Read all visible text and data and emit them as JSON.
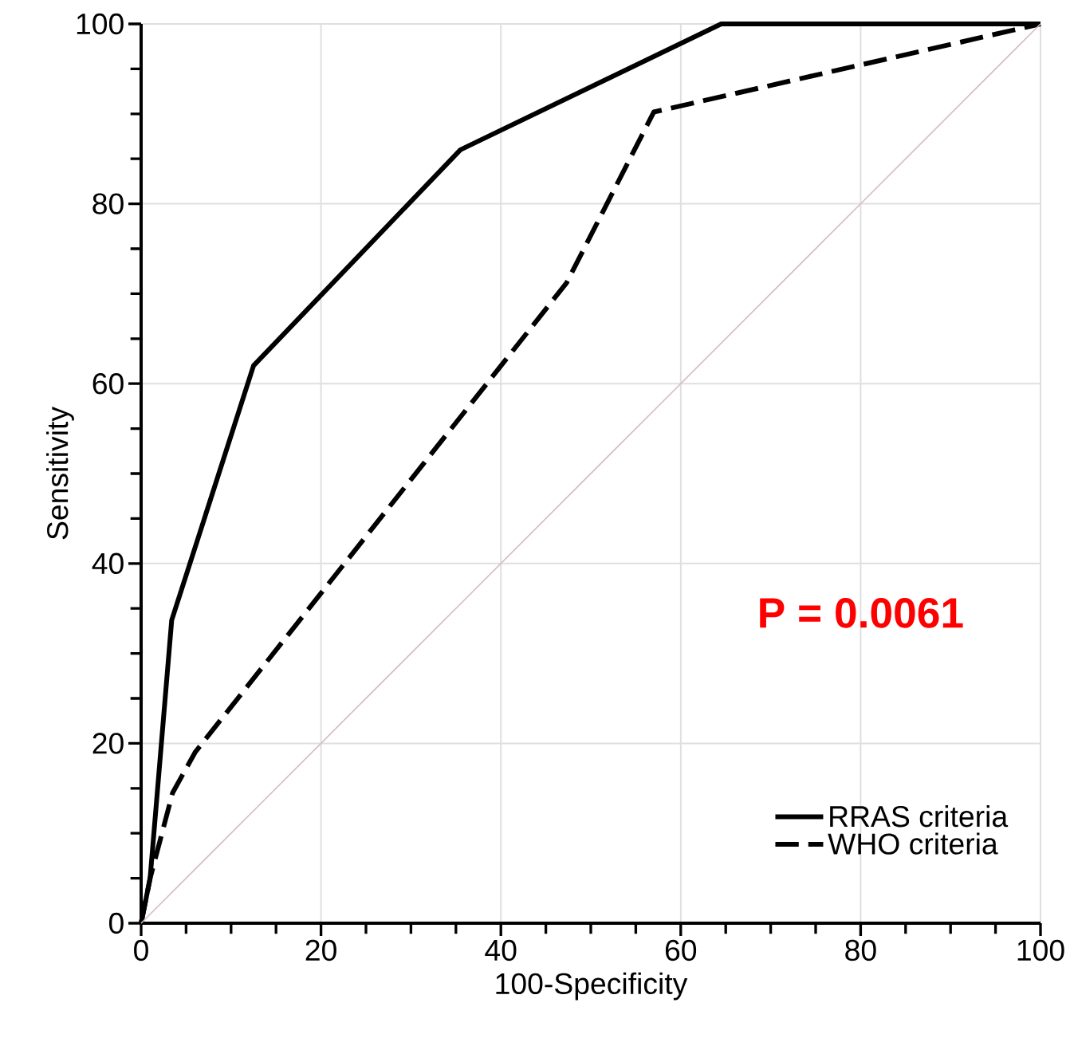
{
  "chart_data": {
    "type": "line",
    "xlabel": "100-Specificity",
    "ylabel": "Sensitivity",
    "xlim": [
      0,
      100
    ],
    "ylim": [
      0,
      100
    ],
    "xticks": [
      0,
      20,
      40,
      60,
      80,
      100
    ],
    "yticks": [
      0,
      20,
      40,
      60,
      80,
      100
    ],
    "grid": true,
    "legend": "bottom right",
    "annotations": [
      "P = 0.0061"
    ],
    "series": [
      {
        "name": "RRAS criteria",
        "color": "#000000",
        "line_style": "solid",
        "x": [
          0,
          1,
          3.4,
          12.5,
          35.5,
          64.5,
          100
        ],
        "values": [
          0,
          5,
          33.7,
          62,
          86,
          100,
          100
        ]
      },
      {
        "name": "WHO criteria",
        "color": "#000000",
        "line_style": "dashed",
        "x": [
          0,
          1,
          3.5,
          6,
          47.3,
          57,
          100
        ],
        "values": [
          0,
          5,
          14.5,
          19,
          71.2,
          90.2,
          100
        ]
      },
      {
        "color": "#d9bcbc",
        "line_style": "solid",
        "x": [
          0,
          100
        ],
        "values": [
          0,
          100
        ]
      }
    ]
  }
}
